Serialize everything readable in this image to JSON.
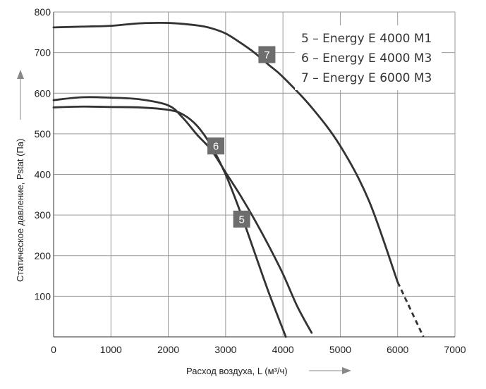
{
  "chart_data": {
    "type": "line",
    "title": "",
    "xlabel": "Расход воздуха, L (м³/ч)",
    "ylabel": "Статическое давление, Pstat (Па)",
    "xlim": [
      0,
      7000
    ],
    "ylim": [
      0,
      800
    ],
    "x_ticks": [
      0,
      1000,
      2000,
      3000,
      4000,
      5000,
      6000,
      7000
    ],
    "y_ticks": [
      100,
      200,
      300,
      400,
      500,
      600,
      700,
      800
    ],
    "grid": true,
    "legend_position": "top-right",
    "legend": [
      "5 – Energy E 4000 M1",
      "6 – Energy E 4000 M3",
      "7 – Energy E 6000 M3"
    ],
    "series": [
      {
        "name": "5",
        "color": "#333333",
        "points": [
          [
            0,
            565
          ],
          [
            500,
            567
          ],
          [
            1000,
            566
          ],
          [
            1500,
            565
          ],
          [
            2000,
            559
          ],
          [
            2250,
            548
          ],
          [
            2500,
            520
          ],
          [
            2750,
            470
          ],
          [
            3000,
            400
          ],
          [
            3250,
            310
          ],
          [
            3500,
            210
          ],
          [
            3750,
            110
          ],
          [
            4050,
            0
          ]
        ]
      },
      {
        "name": "6",
        "color": "#333333",
        "points": [
          [
            0,
            583
          ],
          [
            500,
            590
          ],
          [
            1000,
            589
          ],
          [
            1500,
            585
          ],
          [
            2000,
            570
          ],
          [
            2250,
            540
          ],
          [
            2500,
            498
          ],
          [
            2750,
            460
          ],
          [
            3000,
            405
          ],
          [
            3250,
            350
          ],
          [
            3500,
            290
          ],
          [
            3750,
            225
          ],
          [
            4000,
            155
          ],
          [
            4250,
            75
          ],
          [
            4500,
            10
          ]
        ]
      },
      {
        "name": "7",
        "color": "#333333",
        "points": [
          [
            0,
            762
          ],
          [
            500,
            764
          ],
          [
            1000,
            766
          ],
          [
            1500,
            772
          ],
          [
            2000,
            773
          ],
          [
            2500,
            767
          ],
          [
            2750,
            760
          ],
          [
            3000,
            747
          ],
          [
            3250,
            725
          ],
          [
            3500,
            700
          ],
          [
            3750,
            670
          ],
          [
            4000,
            640
          ],
          [
            4500,
            565
          ],
          [
            5000,
            470
          ],
          [
            5500,
            335
          ],
          [
            6000,
            135
          ]
        ],
        "dashed_extension": [
          [
            6000,
            135
          ],
          [
            6450,
            0
          ]
        ]
      }
    ],
    "curve_labels": [
      {
        "text": "5",
        "x": 3280,
        "y": 290
      },
      {
        "text": "6",
        "x": 2830,
        "y": 470
      },
      {
        "text": "7",
        "x": 3720,
        "y": 695
      }
    ]
  }
}
